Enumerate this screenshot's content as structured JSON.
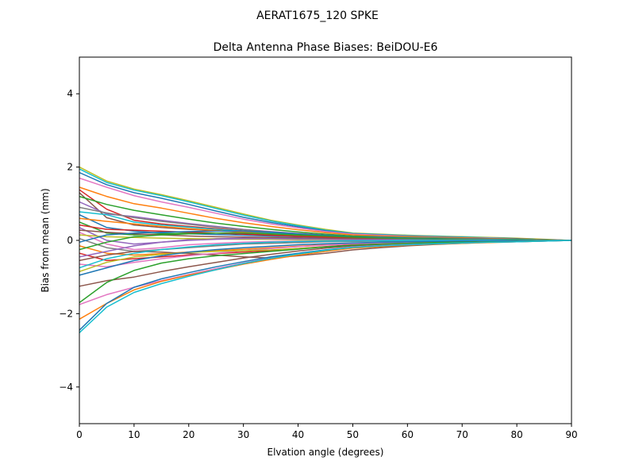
{
  "suptitle": "AERAT1675_120   SPKE",
  "chart_data": {
    "type": "line",
    "title": "Delta Antenna Phase Biases: BeiDOU-E6",
    "xlabel": "Elvation angle (degrees)",
    "ylabel": "Bias from mean (mm)",
    "xlim": [
      0,
      90
    ],
    "ylim": [
      -5,
      5
    ],
    "xticks": [
      0,
      10,
      20,
      30,
      40,
      50,
      60,
      70,
      80,
      90
    ],
    "yticks": [
      -4,
      -2,
      0,
      2,
      4
    ],
    "ytick_labels": [
      "−4",
      "−2",
      "0",
      "2",
      "4"
    ],
    "grid": false,
    "x": [
      0,
      5,
      10,
      15,
      20,
      25,
      30,
      35,
      40,
      45,
      50,
      55,
      60,
      65,
      70,
      75,
      80,
      85,
      90
    ],
    "series": [
      {
        "color": "#bcbd22",
        "values": [
          2.0,
          1.62,
          1.4,
          1.25,
          1.08,
          0.9,
          0.72,
          0.55,
          0.42,
          0.3,
          0.2,
          0.17,
          0.14,
          0.12,
          0.1,
          0.08,
          0.06,
          0.03,
          0.0
        ]
      },
      {
        "color": "#17becf",
        "values": [
          1.95,
          1.58,
          1.37,
          1.22,
          1.05,
          0.87,
          0.69,
          0.53,
          0.4,
          0.28,
          0.19,
          0.16,
          0.13,
          0.11,
          0.09,
          0.07,
          0.05,
          0.02,
          0.0
        ]
      },
      {
        "color": "#1f77b4",
        "values": [
          1.85,
          1.52,
          1.3,
          1.15,
          0.98,
          0.8,
          0.63,
          0.49,
          0.37,
          0.26,
          0.18,
          0.15,
          0.12,
          0.1,
          0.08,
          0.06,
          0.05,
          0.02,
          0.0
        ]
      },
      {
        "color": "#e377c2",
        "values": [
          1.7,
          1.45,
          1.22,
          1.05,
          0.9,
          0.74,
          0.58,
          0.45,
          0.34,
          0.24,
          0.17,
          0.14,
          0.11,
          0.09,
          0.07,
          0.06,
          0.04,
          0.02,
          0.0
        ]
      },
      {
        "color": "#ff7f0e",
        "values": [
          1.45,
          1.2,
          1.0,
          0.88,
          0.74,
          0.6,
          0.48,
          0.38,
          0.29,
          0.21,
          0.15,
          0.12,
          0.1,
          0.08,
          0.07,
          0.05,
          0.04,
          0.02,
          0.0
        ]
      },
      {
        "color": "#d62728",
        "values": [
          1.38,
          0.85,
          0.55,
          0.45,
          0.38,
          0.32,
          0.26,
          0.2,
          0.16,
          0.12,
          0.09,
          0.08,
          0.06,
          0.05,
          0.04,
          0.03,
          0.02,
          0.01,
          0.0
        ]
      },
      {
        "color": "#8c564b",
        "values": [
          1.3,
          0.62,
          0.42,
          0.35,
          0.3,
          0.26,
          0.22,
          0.18,
          0.14,
          0.11,
          0.08,
          0.07,
          0.06,
          0.05,
          0.04,
          0.03,
          0.02,
          0.01,
          0.0
        ]
      },
      {
        "color": "#2ca02c",
        "values": [
          1.2,
          0.98,
          0.82,
          0.7,
          0.58,
          0.47,
          0.38,
          0.3,
          0.23,
          0.17,
          0.12,
          0.1,
          0.08,
          0.07,
          0.05,
          0.04,
          0.03,
          0.01,
          0.0
        ]
      },
      {
        "color": "#9467bd",
        "values": [
          1.05,
          0.72,
          0.65,
          0.55,
          0.46,
          0.38,
          0.3,
          0.24,
          0.19,
          0.14,
          0.1,
          0.09,
          0.07,
          0.06,
          0.05,
          0.04,
          0.03,
          0.01,
          0.0
        ]
      },
      {
        "color": "#7f7f7f",
        "values": [
          0.9,
          0.75,
          0.62,
          0.52,
          0.44,
          0.36,
          0.29,
          0.23,
          0.18,
          0.13,
          0.09,
          0.08,
          0.07,
          0.06,
          0.05,
          0.04,
          0.03,
          0.01,
          0.0
        ]
      },
      {
        "color": "#17becf",
        "values": [
          0.78,
          0.7,
          0.5,
          0.42,
          0.36,
          0.3,
          0.25,
          0.2,
          0.16,
          0.12,
          0.08,
          0.07,
          0.06,
          0.05,
          0.04,
          0.03,
          0.02,
          0.01,
          0.0
        ]
      },
      {
        "color": "#1f77b4",
        "values": [
          0.7,
          0.35,
          0.25,
          0.2,
          0.18,
          0.16,
          0.14,
          0.12,
          0.1,
          0.08,
          0.06,
          0.05,
          0.04,
          0.04,
          0.03,
          0.02,
          0.02,
          0.01,
          0.0
        ]
      },
      {
        "color": "#ff7f0e",
        "values": [
          0.6,
          0.52,
          0.45,
          0.38,
          0.32,
          0.27,
          0.22,
          0.18,
          0.14,
          0.11,
          0.08,
          0.07,
          0.06,
          0.05,
          0.04,
          0.03,
          0.02,
          0.01,
          0.0
        ]
      },
      {
        "color": "#2ca02c",
        "values": [
          0.5,
          0.2,
          0.15,
          0.18,
          0.2,
          0.2,
          0.18,
          0.15,
          0.12,
          0.09,
          0.07,
          0.06,
          0.05,
          0.04,
          0.03,
          0.03,
          0.02,
          0.01,
          0.0
        ]
      },
      {
        "color": "#d62728",
        "values": [
          0.42,
          0.3,
          0.28,
          0.25,
          0.22,
          0.2,
          0.17,
          0.14,
          0.11,
          0.09,
          0.06,
          0.05,
          0.05,
          0.04,
          0.03,
          0.02,
          0.02,
          0.01,
          0.0
        ]
      },
      {
        "color": "#9467bd",
        "values": [
          0.35,
          0.0,
          -0.1,
          -0.05,
          0.02,
          0.05,
          0.06,
          0.06,
          0.05,
          0.04,
          0.03,
          0.03,
          0.02,
          0.02,
          0.02,
          0.01,
          0.01,
          0.0,
          0.0
        ]
      },
      {
        "color": "#8c564b",
        "values": [
          0.28,
          0.22,
          0.18,
          0.15,
          0.12,
          0.1,
          0.09,
          0.08,
          0.07,
          0.06,
          0.05,
          0.04,
          0.03,
          0.03,
          0.02,
          0.02,
          0.01,
          0.0,
          0.0
        ]
      },
      {
        "color": "#e377c2",
        "values": [
          0.22,
          -0.1,
          -0.25,
          -0.2,
          -0.12,
          -0.08,
          -0.05,
          -0.03,
          -0.02,
          -0.01,
          0.0,
          0.0,
          0.0,
          0.0,
          0.0,
          0.0,
          0.0,
          0.0,
          0.0
        ]
      },
      {
        "color": "#bcbd22",
        "values": [
          0.15,
          0.1,
          0.08,
          0.06,
          0.05,
          0.04,
          0.03,
          0.03,
          0.02,
          0.02,
          0.02,
          0.01,
          0.01,
          0.01,
          0.01,
          0.01,
          0.0,
          0.0,
          0.0
        ]
      },
      {
        "color": "#7f7f7f",
        "values": [
          0.05,
          -0.2,
          -0.3,
          -0.25,
          -0.2,
          -0.15,
          -0.1,
          -0.08,
          -0.06,
          -0.04,
          -0.03,
          -0.02,
          -0.02,
          -0.01,
          -0.01,
          -0.01,
          0.0,
          0.0,
          0.0
        ]
      },
      {
        "color": "#1f77b4",
        "values": [
          -0.05,
          0.15,
          0.2,
          0.22,
          0.24,
          0.25,
          0.25,
          0.22,
          0.18,
          0.14,
          0.1,
          0.08,
          0.06,
          0.05,
          0.04,
          0.03,
          0.02,
          0.01,
          0.0
        ]
      },
      {
        "color": "#ff7f0e",
        "values": [
          -0.15,
          -0.35,
          -0.4,
          -0.36,
          -0.32,
          -0.28,
          -0.24,
          -0.2,
          -0.16,
          -0.12,
          -0.09,
          -0.07,
          -0.05,
          -0.04,
          -0.03,
          -0.02,
          -0.02,
          -0.01,
          0.0
        ]
      },
      {
        "color": "#2ca02c",
        "values": [
          -0.25,
          -0.05,
          0.1,
          0.15,
          0.18,
          0.2,
          0.2,
          0.18,
          0.15,
          0.12,
          0.09,
          0.07,
          0.05,
          0.04,
          0.03,
          0.02,
          0.02,
          0.01,
          0.0
        ]
      },
      {
        "color": "#d62728",
        "values": [
          -0.35,
          -0.55,
          -0.5,
          -0.45,
          -0.4,
          -0.36,
          -0.32,
          -0.28,
          -0.22,
          -0.17,
          -0.12,
          -0.09,
          -0.07,
          -0.05,
          -0.04,
          -0.03,
          -0.02,
          -0.01,
          0.0
        ]
      },
      {
        "color": "#9467bd",
        "values": [
          -0.45,
          -0.3,
          -0.15,
          -0.05,
          0.0,
          0.03,
          0.05,
          0.05,
          0.04,
          0.03,
          0.02,
          0.02,
          0.02,
          0.01,
          0.01,
          0.01,
          0.0,
          0.0,
          0.0
        ]
      },
      {
        "color": "#8c564b",
        "values": [
          -0.55,
          -0.4,
          -0.3,
          -0.32,
          -0.36,
          -0.4,
          -0.45,
          -0.48,
          -0.42,
          -0.35,
          -0.26,
          -0.2,
          -0.15,
          -0.11,
          -0.08,
          -0.05,
          -0.03,
          -0.01,
          0.0
        ]
      },
      {
        "color": "#e377c2",
        "values": [
          -0.65,
          -0.72,
          -0.6,
          -0.5,
          -0.42,
          -0.35,
          -0.28,
          -0.22,
          -0.17,
          -0.13,
          -0.09,
          -0.07,
          -0.05,
          -0.04,
          -0.03,
          -0.02,
          -0.02,
          -0.01,
          0.0
        ]
      },
      {
        "color": "#17becf",
        "values": [
          -0.75,
          -0.5,
          -0.35,
          -0.25,
          -0.18,
          -0.12,
          -0.08,
          -0.05,
          -0.03,
          -0.02,
          -0.01,
          -0.01,
          0.0,
          0.0,
          0.0,
          0.0,
          0.0,
          0.0,
          0.0
        ]
      },
      {
        "color": "#bcbd22",
        "values": [
          -0.85,
          -0.6,
          -0.45,
          -0.38,
          -0.33,
          -0.3,
          -0.28,
          -0.26,
          -0.22,
          -0.18,
          -0.14,
          -0.11,
          -0.08,
          -0.06,
          -0.05,
          -0.03,
          -0.02,
          -0.01,
          0.0
        ]
      },
      {
        "color": "#1f77b4",
        "values": [
          -0.95,
          -0.75,
          -0.55,
          -0.42,
          -0.32,
          -0.25,
          -0.2,
          -0.16,
          -0.12,
          -0.09,
          -0.07,
          -0.05,
          -0.04,
          -0.03,
          -0.02,
          -0.02,
          -0.01,
          -0.01,
          0.0
        ]
      },
      {
        "color": "#8c564b",
        "values": [
          -1.25,
          -1.1,
          -1.0,
          -0.85,
          -0.72,
          -0.6,
          -0.48,
          -0.38,
          -0.29,
          -0.21,
          -0.15,
          -0.12,
          -0.09,
          -0.07,
          -0.05,
          -0.04,
          -0.03,
          -0.01,
          0.0
        ]
      },
      {
        "color": "#2ca02c",
        "values": [
          -1.7,
          -1.15,
          -0.82,
          -0.62,
          -0.5,
          -0.42,
          -0.36,
          -0.3,
          -0.24,
          -0.18,
          -0.13,
          -0.1,
          -0.08,
          -0.06,
          -0.05,
          -0.04,
          -0.03,
          -0.01,
          0.0
        ]
      },
      {
        "color": "#e377c2",
        "values": [
          -1.75,
          -1.48,
          -1.28,
          -1.1,
          -0.93,
          -0.77,
          -0.62,
          -0.48,
          -0.36,
          -0.26,
          -0.18,
          -0.14,
          -0.11,
          -0.09,
          -0.07,
          -0.05,
          -0.04,
          -0.02,
          0.0
        ]
      },
      {
        "color": "#ff7f0e",
        "values": [
          -2.15,
          -1.72,
          -1.35,
          -1.12,
          -0.95,
          -0.8,
          -0.65,
          -0.52,
          -0.4,
          -0.3,
          -0.21,
          -0.17,
          -0.13,
          -0.1,
          -0.08,
          -0.06,
          -0.04,
          -0.02,
          0.0
        ]
      },
      {
        "color": "#1f77b4",
        "values": [
          -2.45,
          -1.72,
          -1.28,
          -1.05,
          -0.88,
          -0.72,
          -0.58,
          -0.45,
          -0.35,
          -0.26,
          -0.19,
          -0.15,
          -0.12,
          -0.09,
          -0.07,
          -0.05,
          -0.04,
          -0.02,
          0.0
        ]
      },
      {
        "color": "#17becf",
        "values": [
          -2.52,
          -1.82,
          -1.42,
          -1.18,
          -0.98,
          -0.8,
          -0.63,
          -0.49,
          -0.37,
          -0.27,
          -0.19,
          -0.15,
          -0.12,
          -0.09,
          -0.07,
          -0.05,
          -0.04,
          -0.02,
          0.0
        ]
      }
    ]
  }
}
